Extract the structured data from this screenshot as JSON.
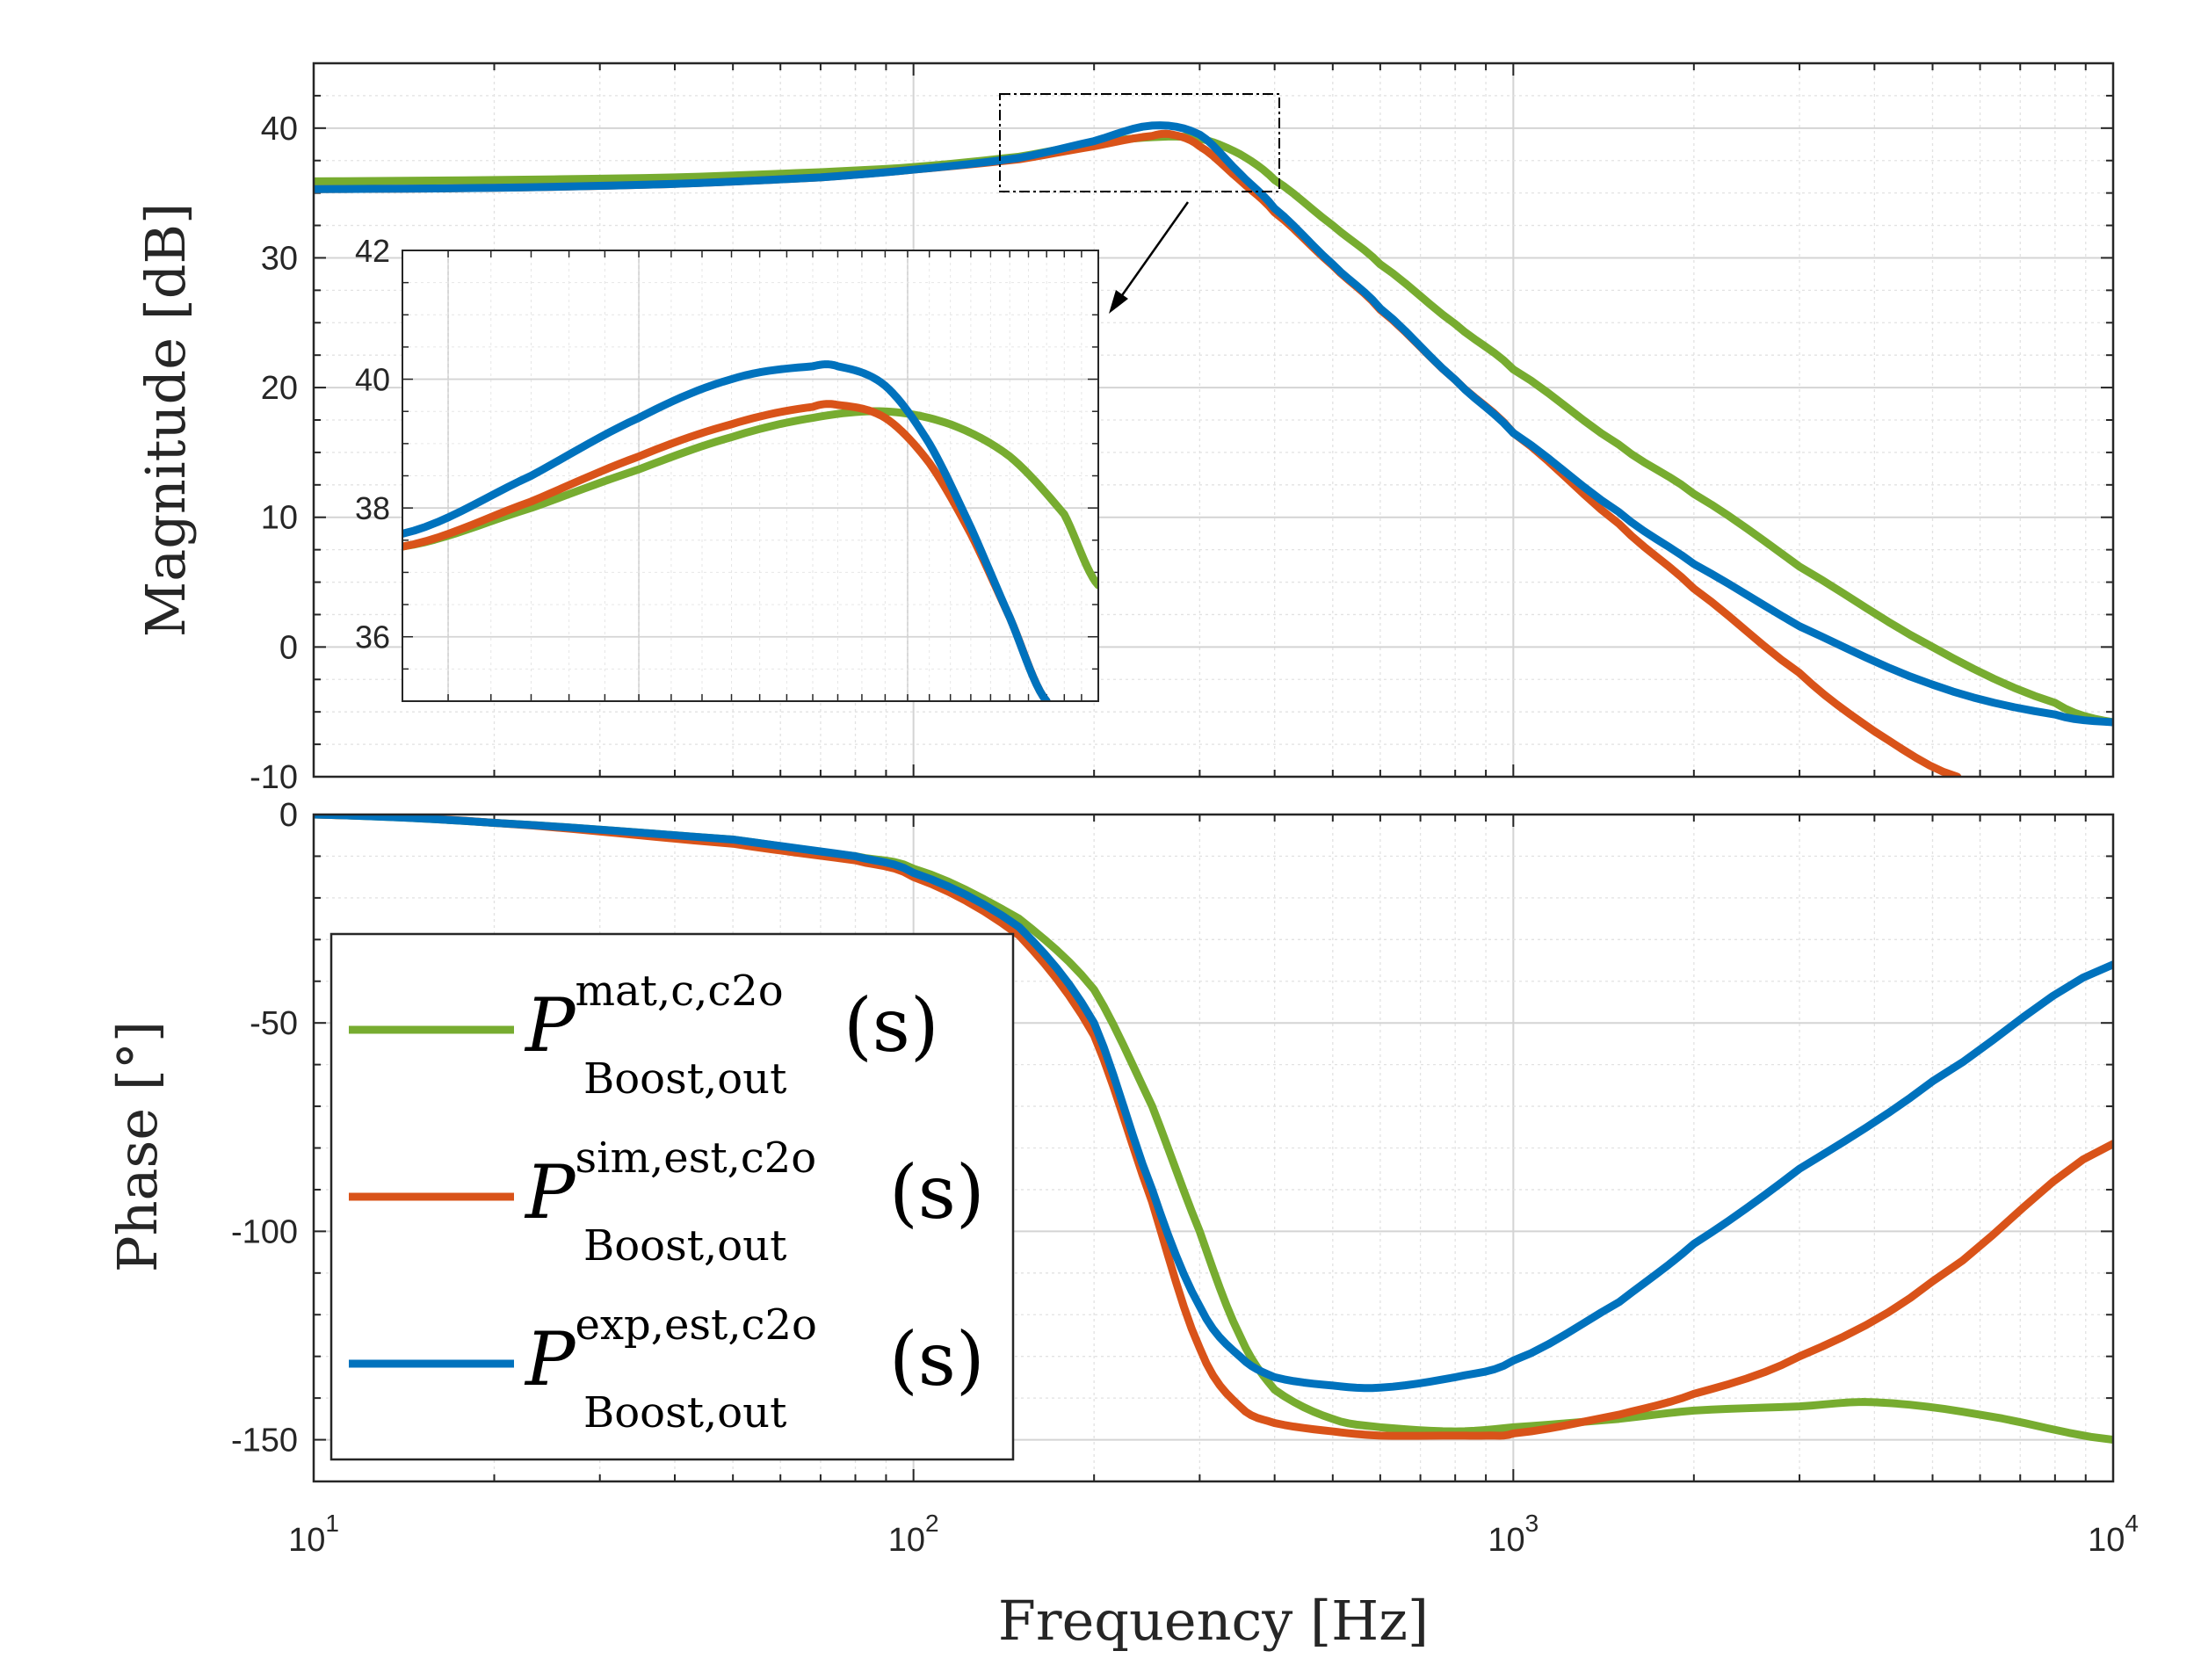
{
  "chart_data": [
    {
      "type": "line",
      "panel": "magnitude",
      "xscale": "log",
      "xlim": [
        10,
        10000
      ],
      "ylim": [
        -10,
        45
      ],
      "ylabel": "Magnitude [dB]",
      "yticks": [
        -10,
        0,
        10,
        20,
        30,
        40
      ],
      "grid": true,
      "series": [
        {
          "name": "mat,c,c2o",
          "color": "#77ac30",
          "x": [
            10,
            20,
            40,
            70,
            100,
            150,
            200,
            250,
            300,
            350,
            400,
            500,
            600,
            800,
            1000,
            1500,
            2000,
            3000,
            5000,
            8000,
            10000
          ],
          "y": [
            35.9,
            36.0,
            36.2,
            36.6,
            37.0,
            37.8,
            38.8,
            39.3,
            39.2,
            38.0,
            36.0,
            32.5,
            29.5,
            24.9,
            21.4,
            15.6,
            11.8,
            6.2,
            0.0,
            -4.3,
            -5.8
          ]
        },
        {
          "name": "sim,est,c2o",
          "color": "#d95319",
          "x": [
            10,
            20,
            40,
            70,
            100,
            150,
            200,
            250,
            270,
            300,
            350,
            400,
            500,
            600,
            800,
            1000,
            1500,
            2000,
            3000,
            4000,
            5500
          ],
          "y": [
            35.3,
            35.4,
            35.7,
            36.2,
            36.8,
            37.6,
            38.6,
            39.4,
            39.5,
            38.6,
            36.0,
            33.5,
            29.4,
            26.0,
            20.6,
            16.5,
            9.5,
            4.5,
            -2.0,
            -6.5,
            -10.0
          ]
        },
        {
          "name": "exp,est,c2o",
          "color": "#0072bd",
          "x": [
            10,
            20,
            40,
            70,
            100,
            150,
            200,
            250,
            300,
            350,
            400,
            500,
            600,
            800,
            1000,
            1500,
            2000,
            3000,
            5000,
            8000,
            10000
          ],
          "y": [
            35.3,
            35.4,
            35.7,
            36.2,
            36.8,
            37.7,
            39.0,
            40.2,
            39.5,
            36.5,
            33.8,
            29.5,
            26.1,
            20.6,
            16.5,
            10.4,
            6.4,
            1.6,
            -2.9,
            -5.2,
            -5.8
          ]
        }
      ]
    },
    {
      "type": "line",
      "panel": "magnitude-inset",
      "xscale": "log",
      "xlim": [
        140,
        400
      ],
      "ylim": [
        35,
        42
      ],
      "yticks": [
        36,
        38,
        40,
        42
      ],
      "grid": true,
      "series": [
        {
          "name": "mat,c,c2o",
          "color": "#77ac30",
          "x": [
            140,
            170,
            200,
            230,
            260,
            290,
            320,
            350,
            380,
            400
          ],
          "y": [
            37.4,
            38.0,
            38.6,
            39.1,
            39.4,
            39.5,
            39.3,
            38.8,
            37.9,
            36.8
          ]
        },
        {
          "name": "sim,est,c2o",
          "color": "#d95319",
          "x": [
            140,
            170,
            200,
            230,
            260,
            270,
            290,
            310,
            330,
            350,
            370
          ],
          "y": [
            37.4,
            38.1,
            38.8,
            39.3,
            39.57,
            39.6,
            39.4,
            38.7,
            37.6,
            36.3,
            35.0
          ]
        },
        {
          "name": "exp,est,c2o",
          "color": "#0072bd",
          "x": [
            140,
            170,
            200,
            230,
            260,
            270,
            290,
            310,
            330,
            350,
            370
          ],
          "y": [
            37.6,
            38.5,
            39.4,
            40.0,
            40.2,
            40.2,
            39.9,
            39.0,
            37.7,
            36.3,
            35.0
          ]
        }
      ]
    },
    {
      "type": "line",
      "panel": "phase",
      "xscale": "log",
      "xlim": [
        10,
        10000
      ],
      "ylim": [
        -160,
        0
      ],
      "ylabel": "Phase [°]",
      "xlabel": "Frequency [Hz]",
      "yticks": [
        -150,
        -100,
        -50,
        0
      ],
      "grid": true,
      "legend": "center-left",
      "series": [
        {
          "name": "mat,c,c2o",
          "color": "#77ac30",
          "x": [
            10,
            20,
            50,
            80,
            100,
            150,
            200,
            250,
            300,
            350,
            400,
            500,
            600,
            800,
            1000,
            1500,
            2000,
            3000,
            4000,
            6000,
            10000
          ],
          "y": [
            0,
            -2,
            -6,
            -10,
            -13,
            -25,
            -42,
            -70,
            -100,
            -125,
            -138,
            -145,
            -147,
            -148,
            -147,
            -145,
            -143,
            -142,
            -141,
            -144,
            -150
          ]
        },
        {
          "name": "sim,est,c2o",
          "color": "#d95319",
          "x": [
            10,
            20,
            50,
            80,
            100,
            150,
            200,
            250,
            300,
            350,
            400,
            500,
            600,
            800,
            900,
            1000,
            1500,
            2000,
            3000,
            5000,
            10000
          ],
          "y": [
            0,
            -2,
            -7,
            -11,
            -15,
            -29,
            -53,
            -93,
            -128,
            -142,
            -146,
            -148,
            -149,
            -149,
            -149,
            -148.5,
            -144,
            -139,
            -130,
            -112,
            -79
          ]
        },
        {
          "name": "exp,est,c2o",
          "color": "#0072bd",
          "x": [
            10,
            20,
            50,
            80,
            100,
            150,
            200,
            250,
            300,
            350,
            400,
            500,
            600,
            800,
            1000,
            1500,
            2000,
            3000,
            5000,
            10000
          ],
          "y": [
            0,
            -2,
            -6,
            -10,
            -14,
            -27,
            -50,
            -90,
            -118,
            -130,
            -135,
            -137,
            -137.5,
            -135,
            -131,
            -117,
            -103,
            -85,
            -64,
            -36
          ]
        }
      ]
    }
  ],
  "xtick_labels": [
    {
      "value": 10,
      "base": "10",
      "exp": "1"
    },
    {
      "value": 100,
      "base": "10",
      "exp": "2"
    },
    {
      "value": 1000,
      "base": "10",
      "exp": "3"
    },
    {
      "value": 10000,
      "base": "10",
      "exp": "4"
    }
  ],
  "legend_entries": [
    {
      "symbol": "P",
      "sup": "mat,c,c2o",
      "sub": "Boost,out",
      "arg": "(s)",
      "color": "#77ac30"
    },
    {
      "symbol": "P",
      "sup": "sim,est,c2o",
      "sub": "Boost,out",
      "arg": "(s)",
      "color": "#d95319"
    },
    {
      "symbol": "P",
      "sup": "exp,est,c2o",
      "sub": "Boost,out",
      "arg": "(s)",
      "color": "#0072bd"
    }
  ]
}
